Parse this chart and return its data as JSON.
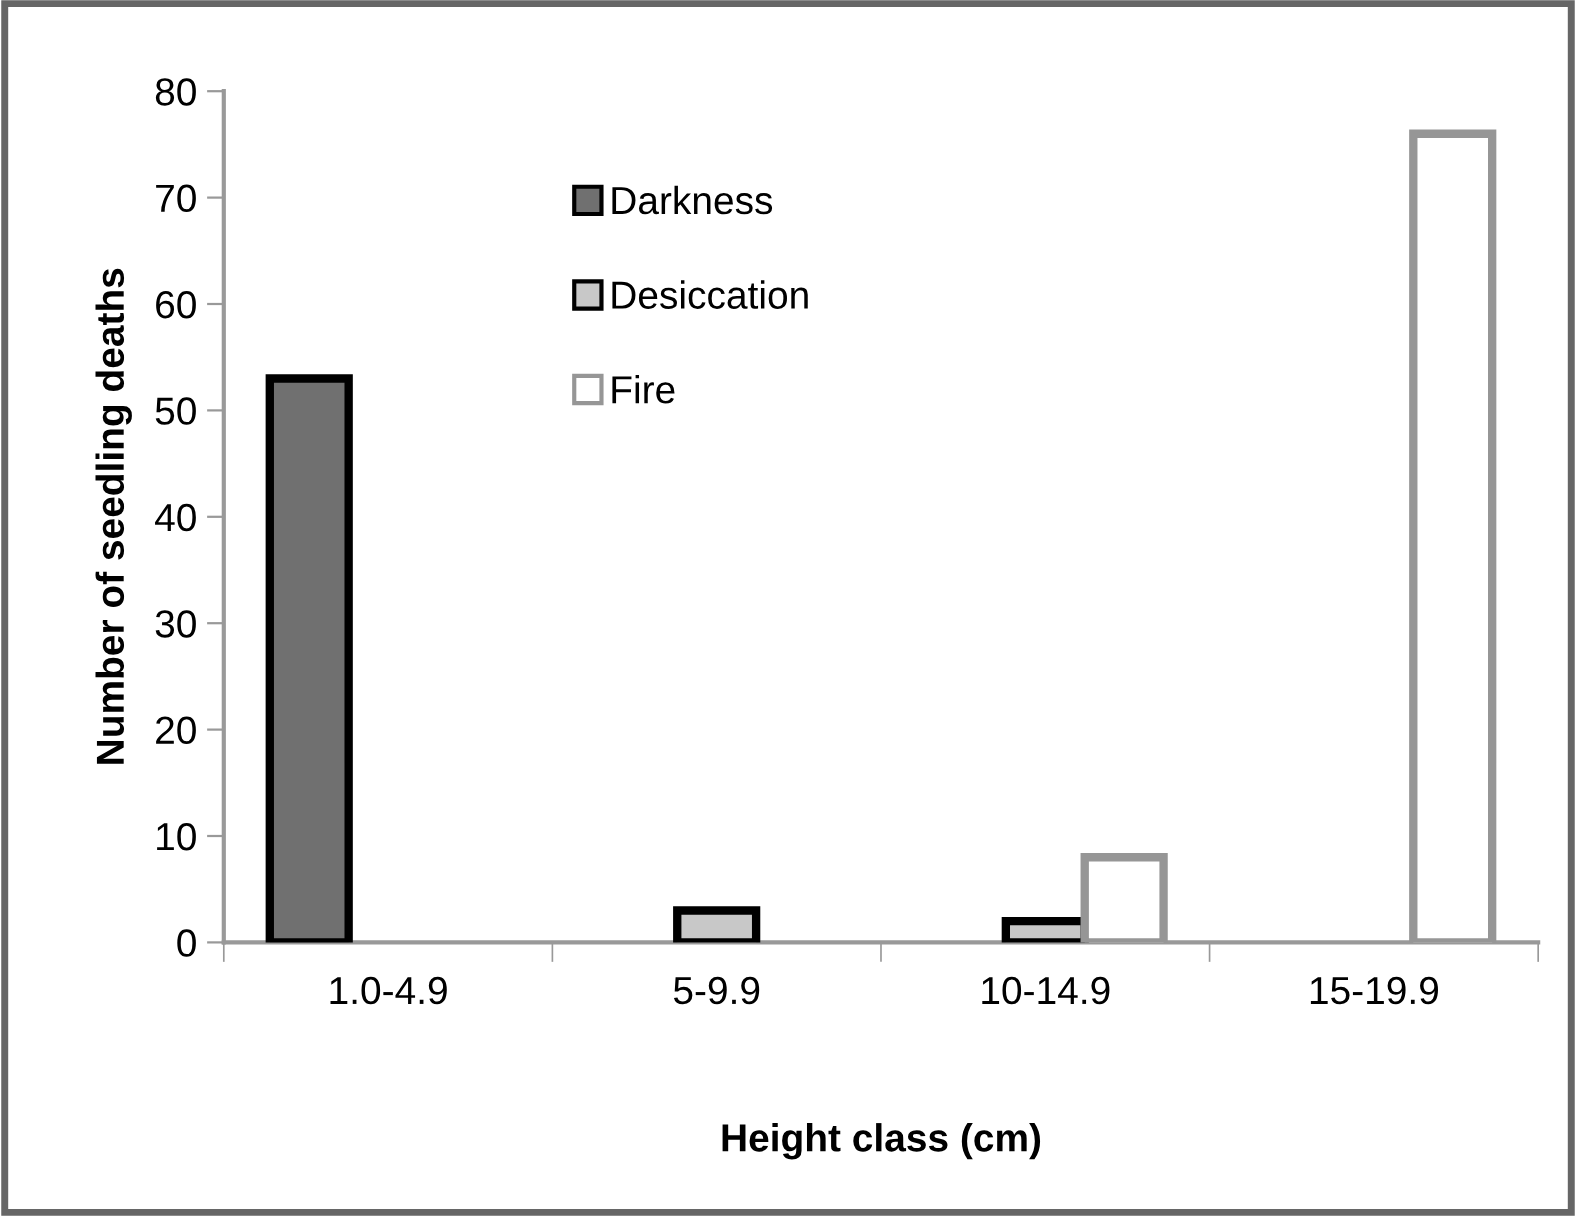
{
  "chart_data": {
    "type": "bar",
    "xlabel": "Height class (cm)",
    "ylabel": "Number of seedling deaths",
    "categories": [
      "1.0-4.9",
      "5-9.9",
      "10-14.9",
      "15-19.9"
    ],
    "series": [
      {
        "name": "Darkness",
        "color": "#707070",
        "values": [
          53,
          null,
          null,
          null
        ]
      },
      {
        "name": "Desiccation",
        "color": "#c8c8c8",
        "values": [
          null,
          3,
          2,
          null
        ]
      },
      {
        "name": "Fire",
        "color": "#ffffff",
        "values": [
          null,
          null,
          8,
          76
        ]
      }
    ],
    "ylim": [
      0,
      80
    ],
    "yticks": [
      0,
      10,
      20,
      30,
      40,
      50,
      60,
      70,
      80
    ],
    "grid": false,
    "legend": "top"
  }
}
